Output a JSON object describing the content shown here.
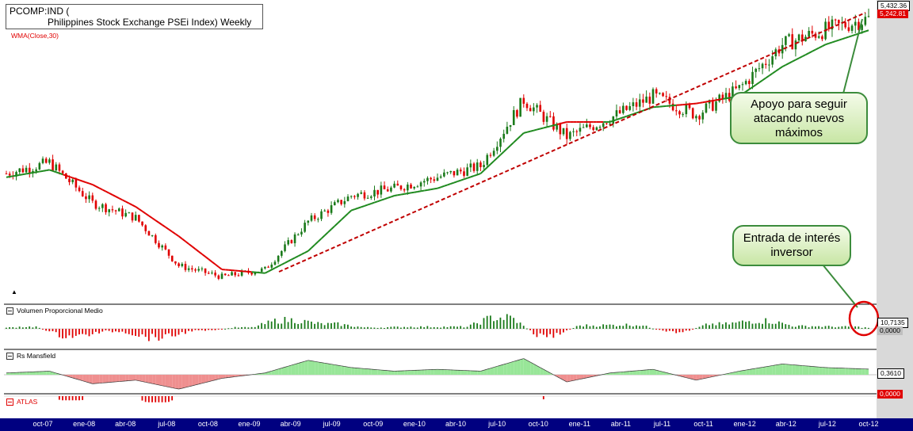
{
  "header": {
    "symbol": "PCOMP:IND (",
    "name": "Philippines Stock Exchange PSEi Index) Weekly",
    "indicator": "WMA(Close,30)"
  },
  "price_tags": {
    "close": "5,432.36",
    "wma": "5,242.81"
  },
  "panels": {
    "volume": {
      "label": "Volumen Proporcional Medio",
      "value": "10,7135",
      "zero": "0,0000"
    },
    "mansfield": {
      "label": "Rs Mansfield",
      "value": "0,3610"
    },
    "atlas": {
      "label": "ATLAS",
      "value": "0,0000"
    }
  },
  "annotations": {
    "support": "Apoyo para seguir atacando nuevos máximos",
    "interest": "Entrada de interés inversor"
  },
  "x_axis_labels": [
    "oct-07",
    "ene-08",
    "abr-08",
    "jul-08",
    "oct-08",
    "ene-09",
    "abr-09",
    "jul-09",
    "oct-09",
    "ene-10",
    "abr-10",
    "jul-10",
    "oct-10",
    "ene-11",
    "abr-11",
    "jul-11",
    "oct-11",
    "ene-12",
    "abr-12",
    "jul-12",
    "oct-12"
  ],
  "colors": {
    "up": "#1a7a1a",
    "down": "#e00000",
    "wma_above": "#1f8a1f",
    "wma_below": "#e00000",
    "trendline": "#c00000",
    "mansfield_pos": "#98e698",
    "mansfield_neg": "#ef8f8f",
    "date_bar": "#000080"
  },
  "chart_data": {
    "type": "line",
    "title": "PCOMP:IND (Philippines Stock Exchange PSEi Index) Weekly",
    "x": [
      "oct-07",
      "ene-08",
      "abr-08",
      "jul-08",
      "oct-08",
      "ene-09",
      "abr-09",
      "jul-09",
      "oct-09",
      "ene-10",
      "abr-10",
      "jul-10",
      "oct-10",
      "ene-11",
      "abr-11",
      "jul-11",
      "oct-11",
      "ene-12",
      "abr-12",
      "jul-12",
      "oct-12"
    ],
    "series": [
      {
        "name": "PCOMP:IND",
        "values": [
          3300,
          3450,
          2900,
          2700,
          2050,
          1900,
          2000,
          2650,
          3000,
          3100,
          3250,
          3400,
          4300,
          3800,
          4050,
          4350,
          4100,
          4450,
          5050,
          5250,
          5400
        ]
      },
      {
        "name": "WMA(Close,30)",
        "values": [
          3250,
          3350,
          3150,
          2850,
          2450,
          2000,
          1950,
          2250,
          2800,
          3000,
          3100,
          3300,
          3850,
          4000,
          4000,
          4200,
          4250,
          4350,
          4750,
          5050,
          5242.81
        ]
      }
    ],
    "last_close": 5432.36,
    "last_wma": 5242.81,
    "volume_panel_last": 10.7135,
    "mansfield_last": 0.361,
    "atlas_last": 0.0
  }
}
